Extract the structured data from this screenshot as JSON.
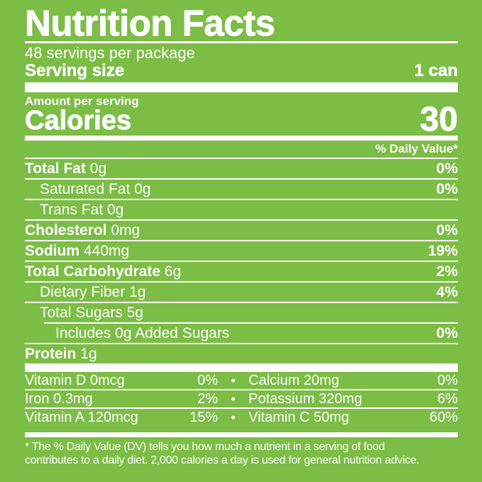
{
  "page": {
    "background_color": "#7CBD45",
    "text_color": "#FFFFFF"
  },
  "label": {
    "title": "Nutrition Facts",
    "servings_per_package": "48 servings per package",
    "serving_size": {
      "label": "Serving size",
      "value": "1 can"
    },
    "amount_per_serving": "Amount per serving",
    "calories": {
      "label": "Calories",
      "value": "30"
    },
    "daily_value_header": "% Daily Value*",
    "nutrients": [
      {
        "name": "Total Fat",
        "amount": "0g",
        "dv": "0%",
        "bold": true,
        "indent": 0,
        "divider_indent": false
      },
      {
        "name": "Saturated Fat",
        "amount": "0g",
        "dv": "0%",
        "bold": false,
        "indent": 1,
        "divider_indent": false
      },
      {
        "name": "Trans Fat",
        "amount": "0g",
        "dv": "",
        "bold": false,
        "indent": 1,
        "divider_indent": false
      },
      {
        "name": "Cholesterol",
        "amount": "0mg",
        "dv": "0%",
        "bold": true,
        "indent": 0,
        "divider_indent": false
      },
      {
        "name": "Sodium",
        "amount": "440mg",
        "dv": "19%",
        "bold": true,
        "indent": 0,
        "divider_indent": false
      },
      {
        "name": "Total Carbohydrate",
        "amount": "6g",
        "dv": "2%",
        "bold": true,
        "indent": 0,
        "divider_indent": false
      },
      {
        "name": "Dietary Fiber",
        "amount": "1g",
        "dv": "4%",
        "bold": false,
        "indent": 1,
        "divider_indent": false
      },
      {
        "name": "Total Sugars",
        "amount": "5g",
        "dv": "",
        "bold": false,
        "indent": 1,
        "divider_indent": false
      },
      {
        "name": "Includes 0g Added Sugars",
        "amount": "",
        "dv": "0%",
        "bold": false,
        "indent": 2,
        "divider_indent": true
      },
      {
        "name": "Protein",
        "amount": "1g",
        "dv": "",
        "bold": true,
        "indent": 0,
        "divider_indent": false
      }
    ],
    "micronutrients": {
      "bullet": "•",
      "rows": [
        {
          "left": "Vitamin D 0mcg",
          "left_dv": "0%",
          "right": "Calcium 20mg",
          "right_dv": "0%"
        },
        {
          "left": "Iron 0.3mg",
          "left_dv": "2%",
          "right": "Potassium 320mg",
          "right_dv": "6%"
        },
        {
          "left": "Vitamin A 120mcg",
          "left_dv": "15%",
          "right": "Vitamin C 50mg",
          "right_dv": "60%"
        }
      ]
    },
    "footnote_lines": [
      "* The % Daily Value (DV) tells you how much a nutrient in a serving of food",
      "contributes to a daily diet. 2,000 calories a day is used for general nutrition advice."
    ]
  }
}
